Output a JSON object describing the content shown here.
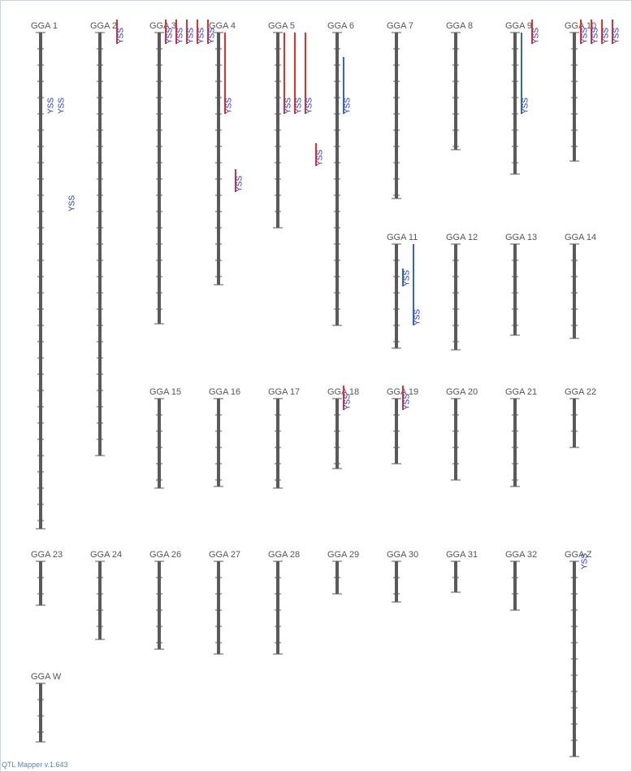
{
  "chromosomes": [
    {
      "label": "GGA 1",
      "length": 305,
      "qtls": [
        {
          "label": "YSS",
          "start": 50,
          "end": 50,
          "color": "#3355cc"
        },
        {
          "label": "YSS",
          "start": 50,
          "end": 50,
          "color": "#3355cc"
        },
        {
          "label": "YSS",
          "start": 110,
          "end": 110,
          "color": "#3355cc"
        }
      ]
    },
    {
      "label": "GGA 2",
      "length": 260,
      "qtls": [
        {
          "label": "YSS",
          "start": -8,
          "end": 7,
          "color": "#e03030"
        }
      ]
    },
    {
      "label": "GGA 3",
      "length": 179,
      "qtls": [
        {
          "label": "YSS",
          "start": -8,
          "end": 7,
          "color": "#e03030"
        },
        {
          "label": "YSS",
          "start": -8,
          "end": 7,
          "color": "#e03030"
        },
        {
          "label": "YSS",
          "start": -8,
          "end": 7,
          "color": "#e03030"
        },
        {
          "label": "YSS",
          "start": -8,
          "end": 7,
          "color": "#e03030"
        },
        {
          "label": "YSS",
          "start": -8,
          "end": 7,
          "color": "#e03030"
        }
      ]
    },
    {
      "label": "GGA 4",
      "length": 155,
      "qtls": [
        {
          "label": "YSS",
          "start": 0,
          "end": 50,
          "color": "#e03030"
        },
        {
          "label": "YSS",
          "start": 84,
          "end": 98,
          "color": "#e03030"
        }
      ]
    },
    {
      "label": "GGA 5",
      "length": 120,
      "qtls": [
        {
          "label": "YSS",
          "start": 0,
          "end": 50,
          "color": "#e03030"
        },
        {
          "label": "YSS",
          "start": 0,
          "end": 50,
          "color": "#e03030"
        },
        {
          "label": "YSS",
          "start": 0,
          "end": 50,
          "color": "#e03030"
        },
        {
          "label": "YSS",
          "start": 68,
          "end": 82,
          "color": "#e03030"
        }
      ]
    },
    {
      "label": "GGA 6",
      "length": 180,
      "qtls": [
        {
          "label": "YSS",
          "start": 15,
          "end": 50,
          "color": "#3366cc"
        }
      ]
    },
    {
      "label": "GGA 7",
      "length": 102,
      "qtls": []
    },
    {
      "label": "GGA 8",
      "length": 72,
      "qtls": []
    },
    {
      "label": "GGA 9",
      "length": 87,
      "qtls": [
        {
          "label": "YSS",
          "start": 0,
          "end": 50,
          "color": "#3366cc"
        },
        {
          "label": "YSS",
          "start": -8,
          "end": 7,
          "color": "#e03030"
        }
      ]
    },
    {
      "label": "GGA 10",
      "length": 79,
      "qtls": [
        {
          "label": "YSS",
          "start": -8,
          "end": 7,
          "color": "#e03030"
        },
        {
          "label": "YSS",
          "start": -8,
          "end": 7,
          "color": "#e03030"
        },
        {
          "label": "YSS",
          "start": -8,
          "end": 7,
          "color": "#e03030"
        },
        {
          "label": "YSS",
          "start": -8,
          "end": 7,
          "color": "#e03030"
        }
      ]
    },
    {
      "label": "GGA 11",
      "length": 64,
      "qtls": [
        {
          "label": "YSS",
          "start": 15,
          "end": 26,
          "color": "#3366cc"
        },
        {
          "label": "YSS",
          "start": 0,
          "end": 50,
          "color": "#3366cc"
        }
      ]
    },
    {
      "label": "GGA 12",
      "length": 65,
      "qtls": []
    },
    {
      "label": "GGA 13",
      "length": 56,
      "qtls": []
    },
    {
      "label": "GGA 14",
      "length": 58,
      "qtls": []
    },
    {
      "label": "GGA 15",
      "length": 55,
      "qtls": []
    },
    {
      "label": "GGA 16",
      "length": 54,
      "qtls": []
    },
    {
      "label": "GGA 17",
      "length": 55,
      "qtls": []
    },
    {
      "label": "GGA 18",
      "length": 43,
      "qtls": [
        {
          "label": "YSS",
          "start": -8,
          "end": 7,
          "color": "#e03030"
        }
      ]
    },
    {
      "label": "GGA 19",
      "length": 40,
      "qtls": [
        {
          "label": "YSS",
          "start": -8,
          "end": 7,
          "color": "#e03030"
        }
      ]
    },
    {
      "label": "GGA 20",
      "length": 50,
      "qtls": []
    },
    {
      "label": "GGA 21",
      "length": 54,
      "qtls": []
    },
    {
      "label": "GGA 22",
      "length": 30,
      "qtls": []
    },
    {
      "label": "GGA 23",
      "length": 27,
      "qtls": []
    },
    {
      "label": "GGA 24",
      "length": 48,
      "qtls": []
    },
    {
      "label": "GGA 26",
      "length": 54,
      "qtls": []
    },
    {
      "label": "GGA 27",
      "length": 57,
      "qtls": []
    },
    {
      "label": "GGA 28",
      "length": 57,
      "qtls": []
    },
    {
      "label": "GGA 29",
      "length": 20,
      "qtls": []
    },
    {
      "label": "GGA 30",
      "length": 25,
      "qtls": []
    },
    {
      "label": "GGA 31",
      "length": 19,
      "qtls": []
    },
    {
      "label": "GGA 32",
      "length": 30,
      "qtls": []
    },
    {
      "label": "GGA Z",
      "length": 120,
      "qtls": [
        {
          "label": "YSS",
          "start": 5,
          "end": 5,
          "color": "#3355cc"
        }
      ]
    },
    {
      "label": "GGA W",
      "length": 36,
      "qtls": []
    }
  ],
  "footer": "QTL Mapper v.1.643"
}
